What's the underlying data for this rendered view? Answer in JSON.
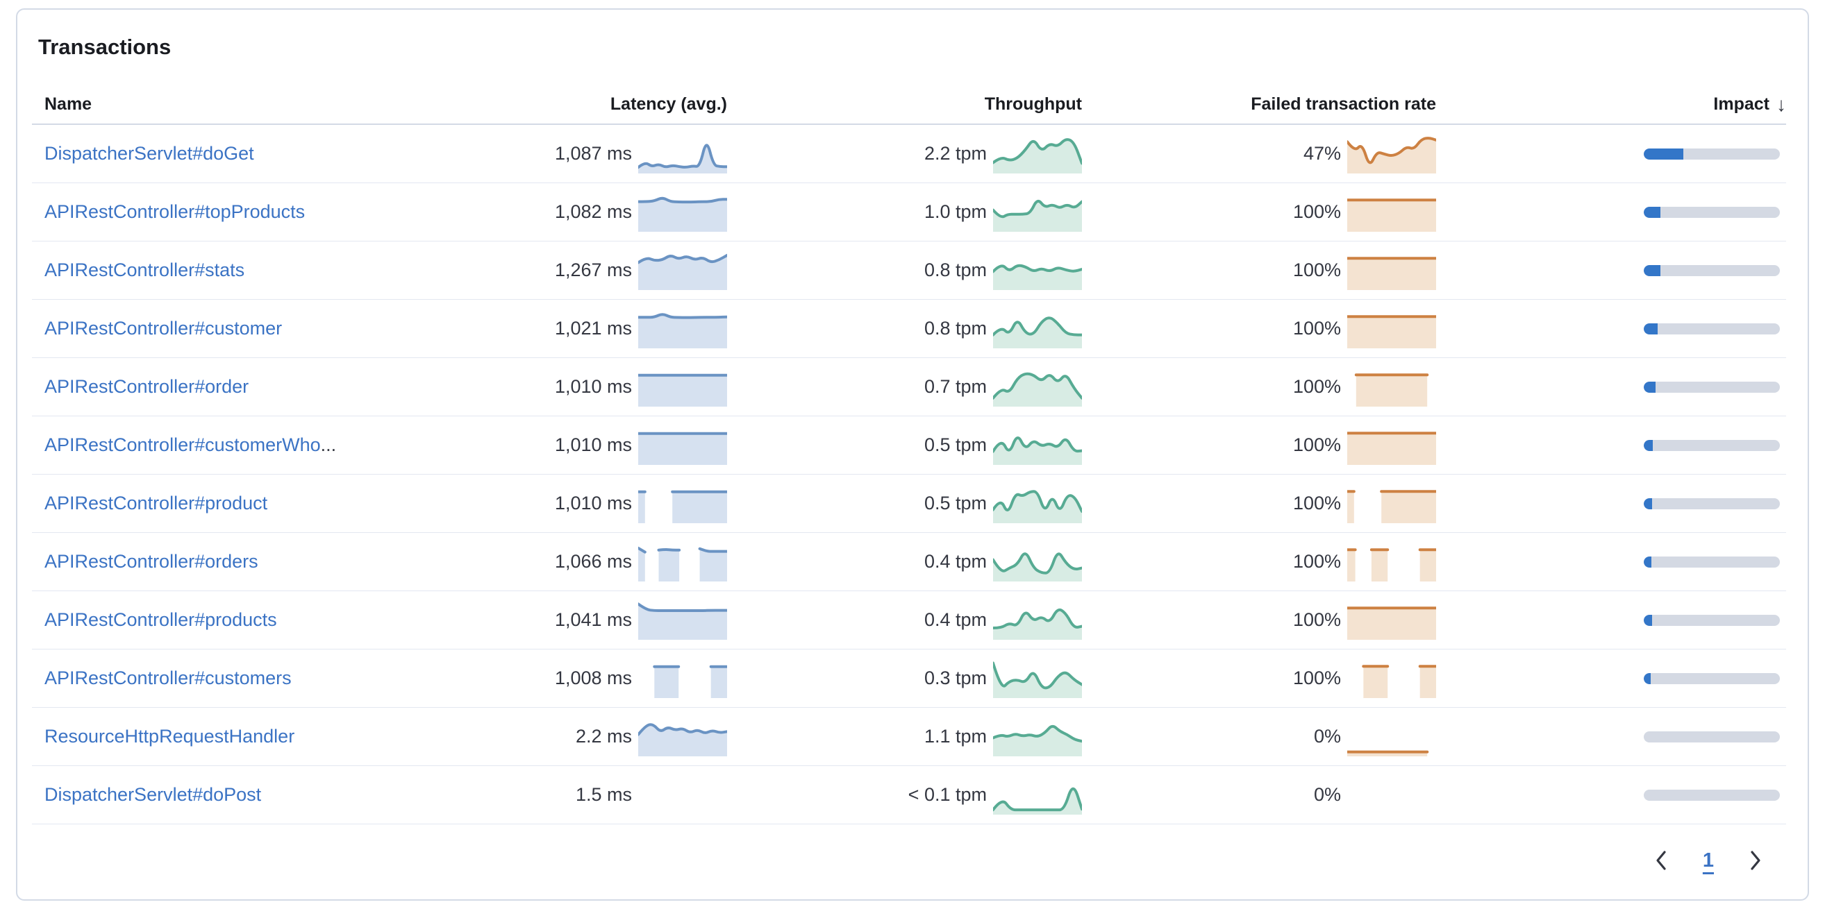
{
  "title": "Transactions",
  "columns": {
    "name": "Name",
    "latency": "Latency (avg.)",
    "throughput": "Throughput",
    "failed": "Failed transaction rate",
    "impact": "Impact",
    "sort_icon": "↓"
  },
  "colors": {
    "link": "#3b73c4",
    "latency_line": "#6a93c3",
    "latency_fill": "#d6e1f0",
    "throughput_line": "#57ab93",
    "throughput_fill": "#d8ece4",
    "failed_line": "#cd8142",
    "failed_fill": "#f4e3d1",
    "impact_fill": "#3376c8",
    "impact_track": "#d4d9e3"
  },
  "rows": [
    {
      "name": "DispatcherServlet#doGet",
      "name_suffix": "",
      "latency": "1,087 ms",
      "throughput": "2.2 tpm",
      "failed_rate": "47%",
      "impact_pct": 29,
      "latency_spark": [
        0.08,
        0.24,
        0.1,
        0.18,
        0.08,
        0.14,
        0.1,
        0.08,
        0.12,
        0.1,
        0.95,
        0.14,
        0.1,
        0.1
      ],
      "throughput_spark": [
        0.22,
        0.4,
        0.28,
        0.35,
        0.6,
        0.95,
        0.55,
        0.8,
        0.7,
        0.95,
        0.85,
        0.2
      ],
      "failed_spark": [
        0.85,
        0.55,
        0.8,
        0.08,
        0.55,
        0.48,
        0.42,
        0.5,
        0.7,
        0.62,
        0.92,
        0.97,
        0.9
      ]
    },
    {
      "name": "APIRestController#topProducts",
      "name_suffix": "",
      "latency": "1,082 ms",
      "throughput": "1.0 tpm",
      "failed_rate": "100%",
      "impact_pct": 12,
      "latency_spark": [
        0.8,
        0.8,
        0.82,
        0.93,
        0.8,
        0.79,
        0.79,
        0.79,
        0.8,
        0.8,
        0.87,
        0.87
      ],
      "throughput_spark": [
        0.55,
        0.3,
        0.42,
        0.42,
        0.42,
        0.45,
        0.9,
        0.62,
        0.72,
        0.6,
        0.72,
        0.6,
        0.8
      ],
      "failed_spark": [
        0.85,
        0.85,
        0.85,
        0.85,
        0.85,
        0.85,
        0.85,
        0.85,
        0.85,
        0.85,
        0.85,
        0.85
      ]
    },
    {
      "name": "APIRestController#stats",
      "name_suffix": "",
      "latency": "1,267 ms",
      "throughput": "0.8 tpm",
      "failed_rate": "100%",
      "impact_pct": 12,
      "latency_spark": [
        0.72,
        0.88,
        0.78,
        0.8,
        0.95,
        0.82,
        0.92,
        0.8,
        0.88,
        0.72,
        0.8,
        0.94
      ],
      "throughput_spark": [
        0.45,
        0.7,
        0.45,
        0.65,
        0.6,
        0.45,
        0.55,
        0.45,
        0.58,
        0.5,
        0.45,
        0.52
      ],
      "failed_spark": [
        0.85,
        0.85,
        0.85,
        0.85,
        0.85,
        0.85,
        0.85,
        0.85,
        0.85,
        0.85,
        0.85,
        0.85
      ]
    },
    {
      "name": "APIRestController#customer",
      "name_suffix": "",
      "latency": "1,021 ms",
      "throughput": "0.8 tpm",
      "failed_rate": "100%",
      "impact_pct": 10,
      "latency_spark": [
        0.83,
        0.83,
        0.83,
        0.94,
        0.83,
        0.82,
        0.82,
        0.82,
        0.83,
        0.83,
        0.83,
        0.84
      ],
      "throughput_spark": [
        0.3,
        0.55,
        0.3,
        0.8,
        0.35,
        0.3,
        0.7,
        0.85,
        0.65,
        0.35,
        0.3,
        0.3
      ],
      "failed_spark": [
        0.85,
        0.85,
        0.85,
        0.85,
        0.85,
        0.85,
        0.85,
        0.85,
        0.85,
        0.85,
        0.85,
        0.85
      ]
    },
    {
      "name": "APIRestController#order",
      "name_suffix": "",
      "latency": "1,010 ms",
      "throughput": "0.7 tpm",
      "failed_rate": "100%",
      "impact_pct": 8.5,
      "latency_spark": [
        0.84,
        0.84,
        0.84,
        0.84,
        0.84,
        0.84,
        0.84,
        0.84,
        0.84,
        0.84,
        0.84,
        0.84
      ],
      "throughput_spark": [
        0.15,
        0.45,
        0.3,
        0.75,
        0.9,
        0.85,
        0.65,
        0.9,
        0.6,
        0.9,
        0.45,
        0.15
      ],
      "failed_spark": [
        null,
        0.85,
        0.85,
        0.85,
        0.85,
        0.85,
        0.85,
        0.85,
        0.85,
        0.85,
        null
      ]
    },
    {
      "name": "APIRestController#customerWho",
      "name_suffix": "...",
      "latency": "1,010 ms",
      "throughput": "0.5 tpm",
      "failed_rate": "100%",
      "impact_pct": 6.5,
      "latency_spark": [
        0.84,
        0.84,
        0.84,
        0.84,
        0.84,
        0.84,
        0.84,
        0.84,
        0.84,
        0.84,
        0.84,
        0.84
      ],
      "throughput_spark": [
        0.3,
        0.7,
        0.2,
        0.85,
        0.35,
        0.65,
        0.45,
        0.55,
        0.4,
        0.75,
        0.3,
        0.32
      ],
      "failed_spark": [
        0.85,
        0.85,
        0.85,
        0.85,
        0.85,
        0.85,
        0.85,
        0.85,
        0.85,
        0.85,
        0.85,
        0.85
      ]
    },
    {
      "name": "APIRestController#product",
      "name_suffix": "",
      "latency": "1,010 ms",
      "throughput": "0.5 tpm",
      "failed_rate": "100%",
      "impact_pct": 6,
      "latency_spark": [
        0.84,
        0.84,
        null,
        null,
        null,
        0.84,
        0.84,
        0.84,
        0.84,
        0.84,
        0.84,
        0.84,
        0.84,
        0.84
      ],
      "throughput_spark": [
        0.3,
        0.65,
        0.15,
        0.8,
        0.7,
        0.85,
        0.85,
        0.2,
        0.75,
        0.2,
        0.75,
        0.7,
        0.25
      ],
      "failed_spark": [
        0.85,
        0.85,
        null,
        null,
        null,
        0.85,
        0.85,
        0.85,
        0.85,
        0.85,
        0.85,
        0.85,
        0.85,
        0.85
      ]
    },
    {
      "name": "APIRestController#orders",
      "name_suffix": "",
      "latency": "1,066 ms",
      "throughput": "0.4 tpm",
      "failed_rate": "100%",
      "impact_pct": 5.5,
      "latency_spark": [
        0.9,
        0.78,
        null,
        0.84,
        0.86,
        0.84,
        0.84,
        null,
        null,
        0.88,
        0.8,
        0.8,
        0.8,
        0.8
      ],
      "throughput_spark": [
        0.55,
        0.15,
        0.3,
        0.4,
        0.85,
        0.3,
        0.15,
        0.15,
        0.85,
        0.45,
        0.25,
        0.3
      ],
      "failed_spark": [
        0.85,
        0.85,
        null,
        0.85,
        0.85,
        0.85,
        null,
        null,
        null,
        0.85,
        0.85,
        0.85
      ]
    },
    {
      "name": "APIRestController#products",
      "name_suffix": "",
      "latency": "1,041 ms",
      "throughput": "0.4 tpm",
      "failed_rate": "100%",
      "impact_pct": 6,
      "latency_spark": [
        0.97,
        0.8,
        0.77,
        0.77,
        0.77,
        0.77,
        0.77,
        0.77,
        0.77,
        0.78,
        0.78,
        0.78
      ],
      "throughput_spark": [
        0.25,
        0.25,
        0.4,
        0.3,
        0.8,
        0.45,
        0.6,
        0.4,
        0.85,
        0.7,
        0.25,
        0.3
      ],
      "failed_spark": [
        0.85,
        0.85,
        0.85,
        0.85,
        0.85,
        0.85,
        0.85,
        0.85,
        0.85,
        0.85,
        0.85,
        0.85
      ]
    },
    {
      "name": "APIRestController#customers",
      "name_suffix": "",
      "latency": "1,008 ms",
      "throughput": "0.3 tpm",
      "failed_rate": "100%",
      "impact_pct": 5,
      "latency_spark": [
        null,
        null,
        0.84,
        0.84,
        0.84,
        0.84,
        null,
        null,
        null,
        0.84,
        0.84,
        0.84
      ],
      "throughput_spark": [
        0.95,
        0.15,
        0.4,
        0.45,
        0.35,
        0.75,
        0.2,
        0.2,
        0.55,
        0.7,
        0.45,
        0.3
      ],
      "failed_spark": [
        null,
        null,
        0.85,
        0.85,
        0.85,
        0.85,
        null,
        null,
        null,
        0.85,
        0.85,
        0.85
      ]
    },
    {
      "name": "ResourceHttpRequestHandler",
      "name_suffix": "",
      "latency": "2.2 ms",
      "throughput": "1.1 tpm",
      "failed_rate": "0%",
      "impact_pct": 0,
      "latency_spark": [
        0.55,
        0.82,
        0.87,
        0.62,
        0.78,
        0.68,
        0.74,
        0.6,
        0.7,
        0.58,
        0.68,
        0.6,
        0.64
      ],
      "throughput_spark": [
        0.45,
        0.55,
        0.48,
        0.58,
        0.5,
        0.55,
        0.48,
        0.6,
        0.85,
        0.65,
        0.55,
        0.4,
        0.35
      ],
      "failed_spark": [
        0.03,
        0.03,
        0.03,
        0.03,
        0.03,
        0.03,
        0.03,
        0.03,
        0.03,
        0.03,
        null
      ]
    },
    {
      "name": "DispatcherServlet#doPost",
      "name_suffix": "",
      "latency": "1.5 ms",
      "throughput": "< 0.1 tpm",
      "failed_rate": "0%",
      "impact_pct": 0,
      "latency_spark": [],
      "throughput_spark": [
        0.04,
        0.4,
        0.04,
        0.04,
        0.04,
        0.04,
        0.04,
        0.04,
        0.04,
        0.88,
        0.06
      ],
      "failed_spark": []
    }
  ],
  "pagination": {
    "current_page": "1",
    "prev_icon": "chevron-left",
    "next_icon": "chevron-right"
  }
}
